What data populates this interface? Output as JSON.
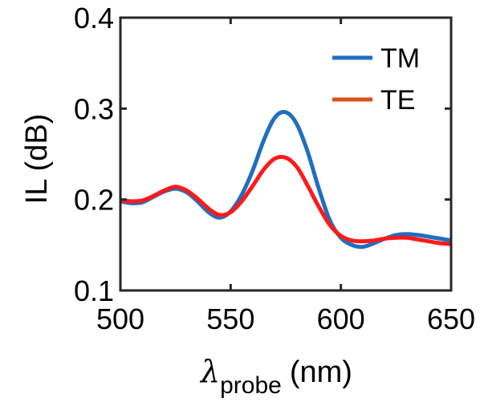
{
  "chart_data": {
    "type": "line",
    "title": "",
    "xlabel": {
      "symbol": "λ",
      "subscript": "probe",
      "unit": "(nm)"
    },
    "ylabel": "IL (dB)",
    "xlim": [
      500,
      650
    ],
    "ylim": [
      0.1,
      0.4
    ],
    "xticks": [
      500,
      550,
      600,
      650
    ],
    "yticks": [
      0.1,
      0.2,
      0.3,
      0.4
    ],
    "xtick_labels": [
      "500",
      "550",
      "600",
      "650"
    ],
    "ytick_labels": [
      "0.1",
      "0.2",
      "0.3",
      "0.4"
    ],
    "grid": false,
    "legend_position": "top-right",
    "series": [
      {
        "name": "TM",
        "color": "#1f6fbf",
        "x": [
          500,
          505,
          510,
          515,
          520,
          525,
          530,
          535,
          540,
          545,
          550,
          555,
          560,
          565,
          570,
          575,
          580,
          585,
          590,
          595,
          600,
          605,
          610,
          615,
          620,
          625,
          630,
          635,
          640,
          645,
          650
        ],
        "y": [
          0.198,
          0.196,
          0.197,
          0.203,
          0.209,
          0.212,
          0.208,
          0.198,
          0.186,
          0.18,
          0.187,
          0.205,
          0.232,
          0.265,
          0.29,
          0.296,
          0.283,
          0.252,
          0.212,
          0.177,
          0.158,
          0.15,
          0.148,
          0.152,
          0.157,
          0.161,
          0.162,
          0.161,
          0.159,
          0.157,
          0.155
        ]
      },
      {
        "name": "TE",
        "color": "#d95319",
        "x": [
          500,
          505,
          510,
          515,
          520,
          525,
          530,
          535,
          540,
          545,
          550,
          555,
          560,
          565,
          570,
          575,
          580,
          585,
          590,
          595,
          600,
          605,
          610,
          615,
          620,
          625,
          630,
          635,
          640,
          645,
          650
        ],
        "y": [
          0.199,
          0.198,
          0.199,
          0.204,
          0.21,
          0.214,
          0.21,
          0.201,
          0.19,
          0.183,
          0.186,
          0.198,
          0.215,
          0.233,
          0.245,
          0.246,
          0.236,
          0.215,
          0.192,
          0.172,
          0.16,
          0.155,
          0.154,
          0.155,
          0.157,
          0.158,
          0.158,
          0.156,
          0.154,
          0.152,
          0.151
        ]
      }
    ]
  }
}
